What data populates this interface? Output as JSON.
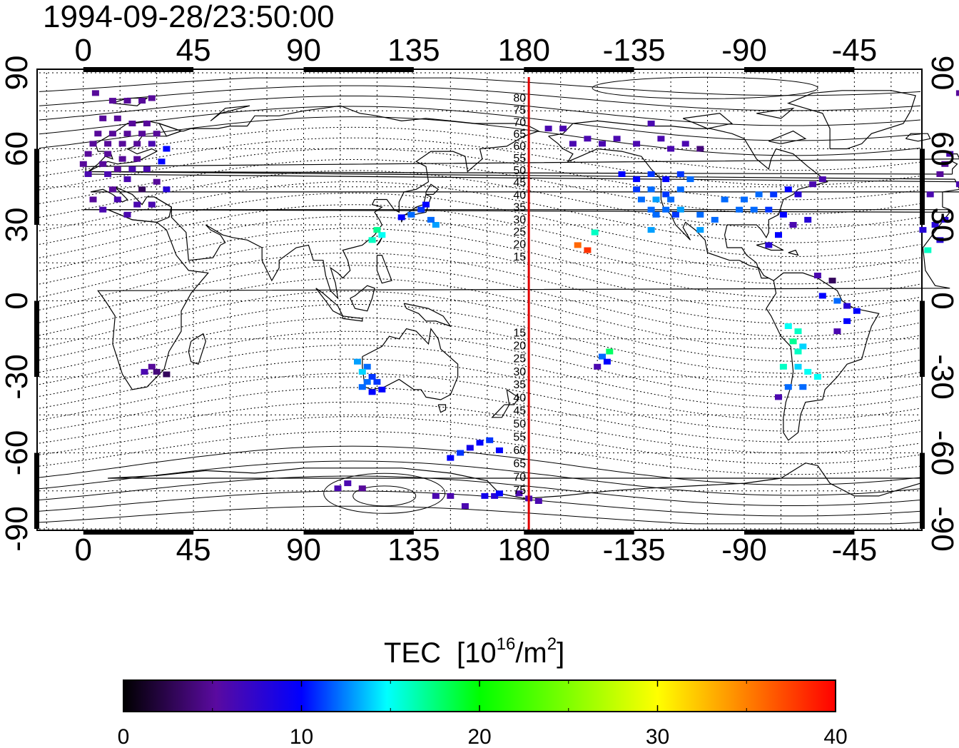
{
  "timestamp": "1994-09-28/23:50:00",
  "axes": {
    "lon_ticks": [
      0,
      45,
      90,
      135,
      180,
      -135,
      -90,
      -45
    ],
    "lon_range": [
      -18,
      342
    ],
    "lat_ticks": [
      90,
      60,
      30,
      0,
      -30,
      -60,
      -90
    ],
    "lat_range": [
      -90,
      90
    ]
  },
  "contour_labels": [
    "80",
    "75",
    "70",
    "65",
    "60",
    "55",
    "50",
    "45",
    "40",
    "35",
    "30",
    "25",
    "20",
    "15",
    "15",
    "20",
    "25",
    "30",
    "35",
    "40",
    "45",
    "50",
    "55",
    "60",
    "65",
    "70",
    "75"
  ],
  "terminator_longitude": 182,
  "colorbar": {
    "title": "TEC",
    "unit_base": "[10",
    "unit_exp": "16",
    "unit_mid": "/m",
    "unit_exp2": "2",
    "unit_end": "]",
    "ticks": [
      "0",
      "10",
      "20",
      "30",
      "40"
    ],
    "min": 0,
    "max": 40,
    "stops": [
      "#000000",
      "#5a0aa0",
      "#0000ff",
      "#00ffff",
      "#00ff00",
      "#ffff00",
      "#ff0000"
    ]
  },
  "chart_data": {
    "type": "scatter",
    "value_name": "TEC",
    "points": [
      [
        -2,
        82,
        5
      ],
      [
        5,
        82,
        5
      ],
      [
        12,
        79,
        5
      ],
      [
        18,
        79,
        5
      ],
      [
        24,
        79,
        5
      ],
      [
        28,
        80,
        5
      ],
      [
        8,
        72,
        5
      ],
      [
        14,
        72,
        5
      ],
      [
        20,
        70,
        5
      ],
      [
        26,
        70,
        5
      ],
      [
        6,
        66,
        5
      ],
      [
        12,
        66,
        5
      ],
      [
        18,
        66,
        5
      ],
      [
        24,
        66,
        5
      ],
      [
        30,
        66,
        5
      ],
      [
        4,
        62,
        5
      ],
      [
        10,
        62,
        5
      ],
      [
        16,
        62,
        5
      ],
      [
        22,
        62,
        5
      ],
      [
        28,
        62,
        6
      ],
      [
        34,
        60,
        10
      ],
      [
        -6,
        58,
        6
      ],
      [
        2,
        58,
        5
      ],
      [
        10,
        58,
        5
      ],
      [
        16,
        56,
        5
      ],
      [
        22,
        56,
        5
      ],
      [
        -8,
        54,
        5
      ],
      [
        0,
        54,
        5
      ],
      [
        8,
        54,
        5
      ],
      [
        14,
        52,
        5
      ],
      [
        20,
        52,
        6
      ],
      [
        26,
        52,
        6
      ],
      [
        -10,
        50,
        5
      ],
      [
        2,
        50,
        6
      ],
      [
        10,
        50,
        6
      ],
      [
        18,
        48,
        6
      ],
      [
        32,
        55,
        10
      ],
      [
        30,
        47,
        5
      ],
      [
        -2,
        46,
        6
      ],
      [
        12,
        44,
        5
      ],
      [
        24,
        44,
        3
      ],
      [
        34,
        44,
        8
      ],
      [
        -14,
        42,
        6
      ],
      [
        4,
        40,
        5
      ],
      [
        14,
        40,
        6
      ],
      [
        22,
        38,
        6
      ],
      [
        28,
        38,
        6
      ],
      [
        8,
        36,
        6
      ],
      [
        18,
        34,
        6
      ],
      [
        -17,
        28,
        8
      ],
      [
        -12,
        30,
        8
      ],
      [
        -8,
        32,
        8
      ],
      [
        -10,
        24,
        8
      ],
      [
        -15,
        20,
        16
      ],
      [
        28,
        -26,
        5
      ],
      [
        25,
        -28,
        6
      ],
      [
        30,
        -28,
        4
      ],
      [
        34,
        -29,
        3
      ],
      [
        112,
        -24,
        13
      ],
      [
        116,
        -26,
        12
      ],
      [
        114,
        -28,
        14
      ],
      [
        118,
        -30,
        11
      ],
      [
        116,
        -32,
        12
      ],
      [
        120,
        -32,
        11
      ],
      [
        114,
        -34,
        12
      ],
      [
        122,
        -35,
        10
      ],
      [
        118,
        -36,
        10
      ],
      [
        118,
        24,
        16
      ],
      [
        122,
        26,
        15
      ],
      [
        120,
        28,
        17
      ],
      [
        130,
        33,
        10
      ],
      [
        134,
        34,
        12
      ],
      [
        138,
        36,
        11
      ],
      [
        140,
        38,
        10
      ],
      [
        144,
        30,
        13
      ],
      [
        142,
        32,
        12
      ],
      [
        104,
        -74,
        6
      ],
      [
        108,
        -72,
        6
      ],
      [
        114,
        -74,
        5
      ],
      [
        150,
        -62,
        10
      ],
      [
        154,
        -60,
        11
      ],
      [
        158,
        -58,
        9
      ],
      [
        162,
        -56,
        10
      ],
      [
        166,
        -55,
        11
      ],
      [
        170,
        -59,
        10
      ],
      [
        144,
        -77,
        6
      ],
      [
        150,
        -77,
        6
      ],
      [
        156,
        -81,
        6
      ],
      [
        164,
        -77,
        9
      ],
      [
        168,
        -77,
        8
      ],
      [
        170,
        -76,
        10
      ],
      [
        178,
        -76,
        6
      ],
      [
        182,
        -78,
        6
      ],
      [
        186,
        -79,
        6
      ],
      [
        202,
        22,
        36
      ],
      [
        206,
        20,
        38
      ],
      [
        209,
        27,
        16
      ],
      [
        215,
        -20,
        18
      ],
      [
        212,
        -22,
        12
      ],
      [
        214,
        -24,
        10
      ],
      [
        210,
        -26,
        6
      ],
      [
        190,
        68,
        6
      ],
      [
        196,
        68,
        6
      ],
      [
        200,
        62,
        6
      ],
      [
        206,
        64,
        6
      ],
      [
        212,
        62,
        6
      ],
      [
        218,
        64,
        6
      ],
      [
        226,
        62,
        6
      ],
      [
        232,
        70,
        6
      ],
      [
        236,
        64,
        6
      ],
      [
        240,
        60,
        6
      ],
      [
        246,
        62,
        6
      ],
      [
        252,
        60,
        4
      ],
      [
        220,
        50,
        10
      ],
      [
        226,
        48,
        10
      ],
      [
        232,
        50,
        11
      ],
      [
        238,
        48,
        10
      ],
      [
        244,
        50,
        11
      ],
      [
        248,
        48,
        12
      ],
      [
        226,
        44,
        11
      ],
      [
        232,
        44,
        12
      ],
      [
        238,
        42,
        11
      ],
      [
        244,
        44,
        12
      ],
      [
        228,
        40,
        12
      ],
      [
        234,
        40,
        13
      ],
      [
        240,
        40,
        12
      ],
      [
        232,
        36,
        12
      ],
      [
        238,
        36,
        12
      ],
      [
        244,
        36,
        13
      ],
      [
        234,
        34,
        12
      ],
      [
        242,
        34,
        11
      ],
      [
        252,
        34,
        12
      ],
      [
        258,
        32,
        12
      ],
      [
        262,
        40,
        12
      ],
      [
        270,
        40,
        12
      ],
      [
        276,
        42,
        12
      ],
      [
        282,
        42,
        11
      ],
      [
        288,
        44,
        10
      ],
      [
        292,
        42,
        8
      ],
      [
        298,
        46,
        6
      ],
      [
        302,
        48,
        6
      ],
      [
        268,
        36,
        12
      ],
      [
        274,
        36,
        12
      ],
      [
        280,
        36,
        11
      ],
      [
        286,
        34,
        10
      ],
      [
        290,
        30,
        6
      ],
      [
        296,
        32,
        8
      ],
      [
        284,
        26,
        10
      ],
      [
        280,
        22,
        8
      ],
      [
        232,
        28,
        13
      ],
      [
        252,
        28,
        13
      ],
      [
        300,
        10,
        6
      ],
      [
        306,
        8,
        3
      ],
      [
        302,
        2,
        10
      ],
      [
        308,
        0,
        12
      ],
      [
        312,
        -2,
        8
      ],
      [
        316,
        -4,
        10
      ],
      [
        312,
        -8,
        10
      ],
      [
        308,
        -12,
        6
      ],
      [
        288,
        -10,
        15
      ],
      [
        292,
        -12,
        16
      ],
      [
        290,
        -16,
        17
      ],
      [
        294,
        -18,
        14
      ],
      [
        292,
        -20,
        16
      ],
      [
        286,
        -26,
        16
      ],
      [
        292,
        -26,
        14
      ],
      [
        296,
        -28,
        15
      ],
      [
        300,
        -30,
        15
      ],
      [
        288,
        -34,
        12
      ],
      [
        294,
        -34,
        12
      ],
      [
        284,
        -38,
        6
      ]
    ]
  }
}
